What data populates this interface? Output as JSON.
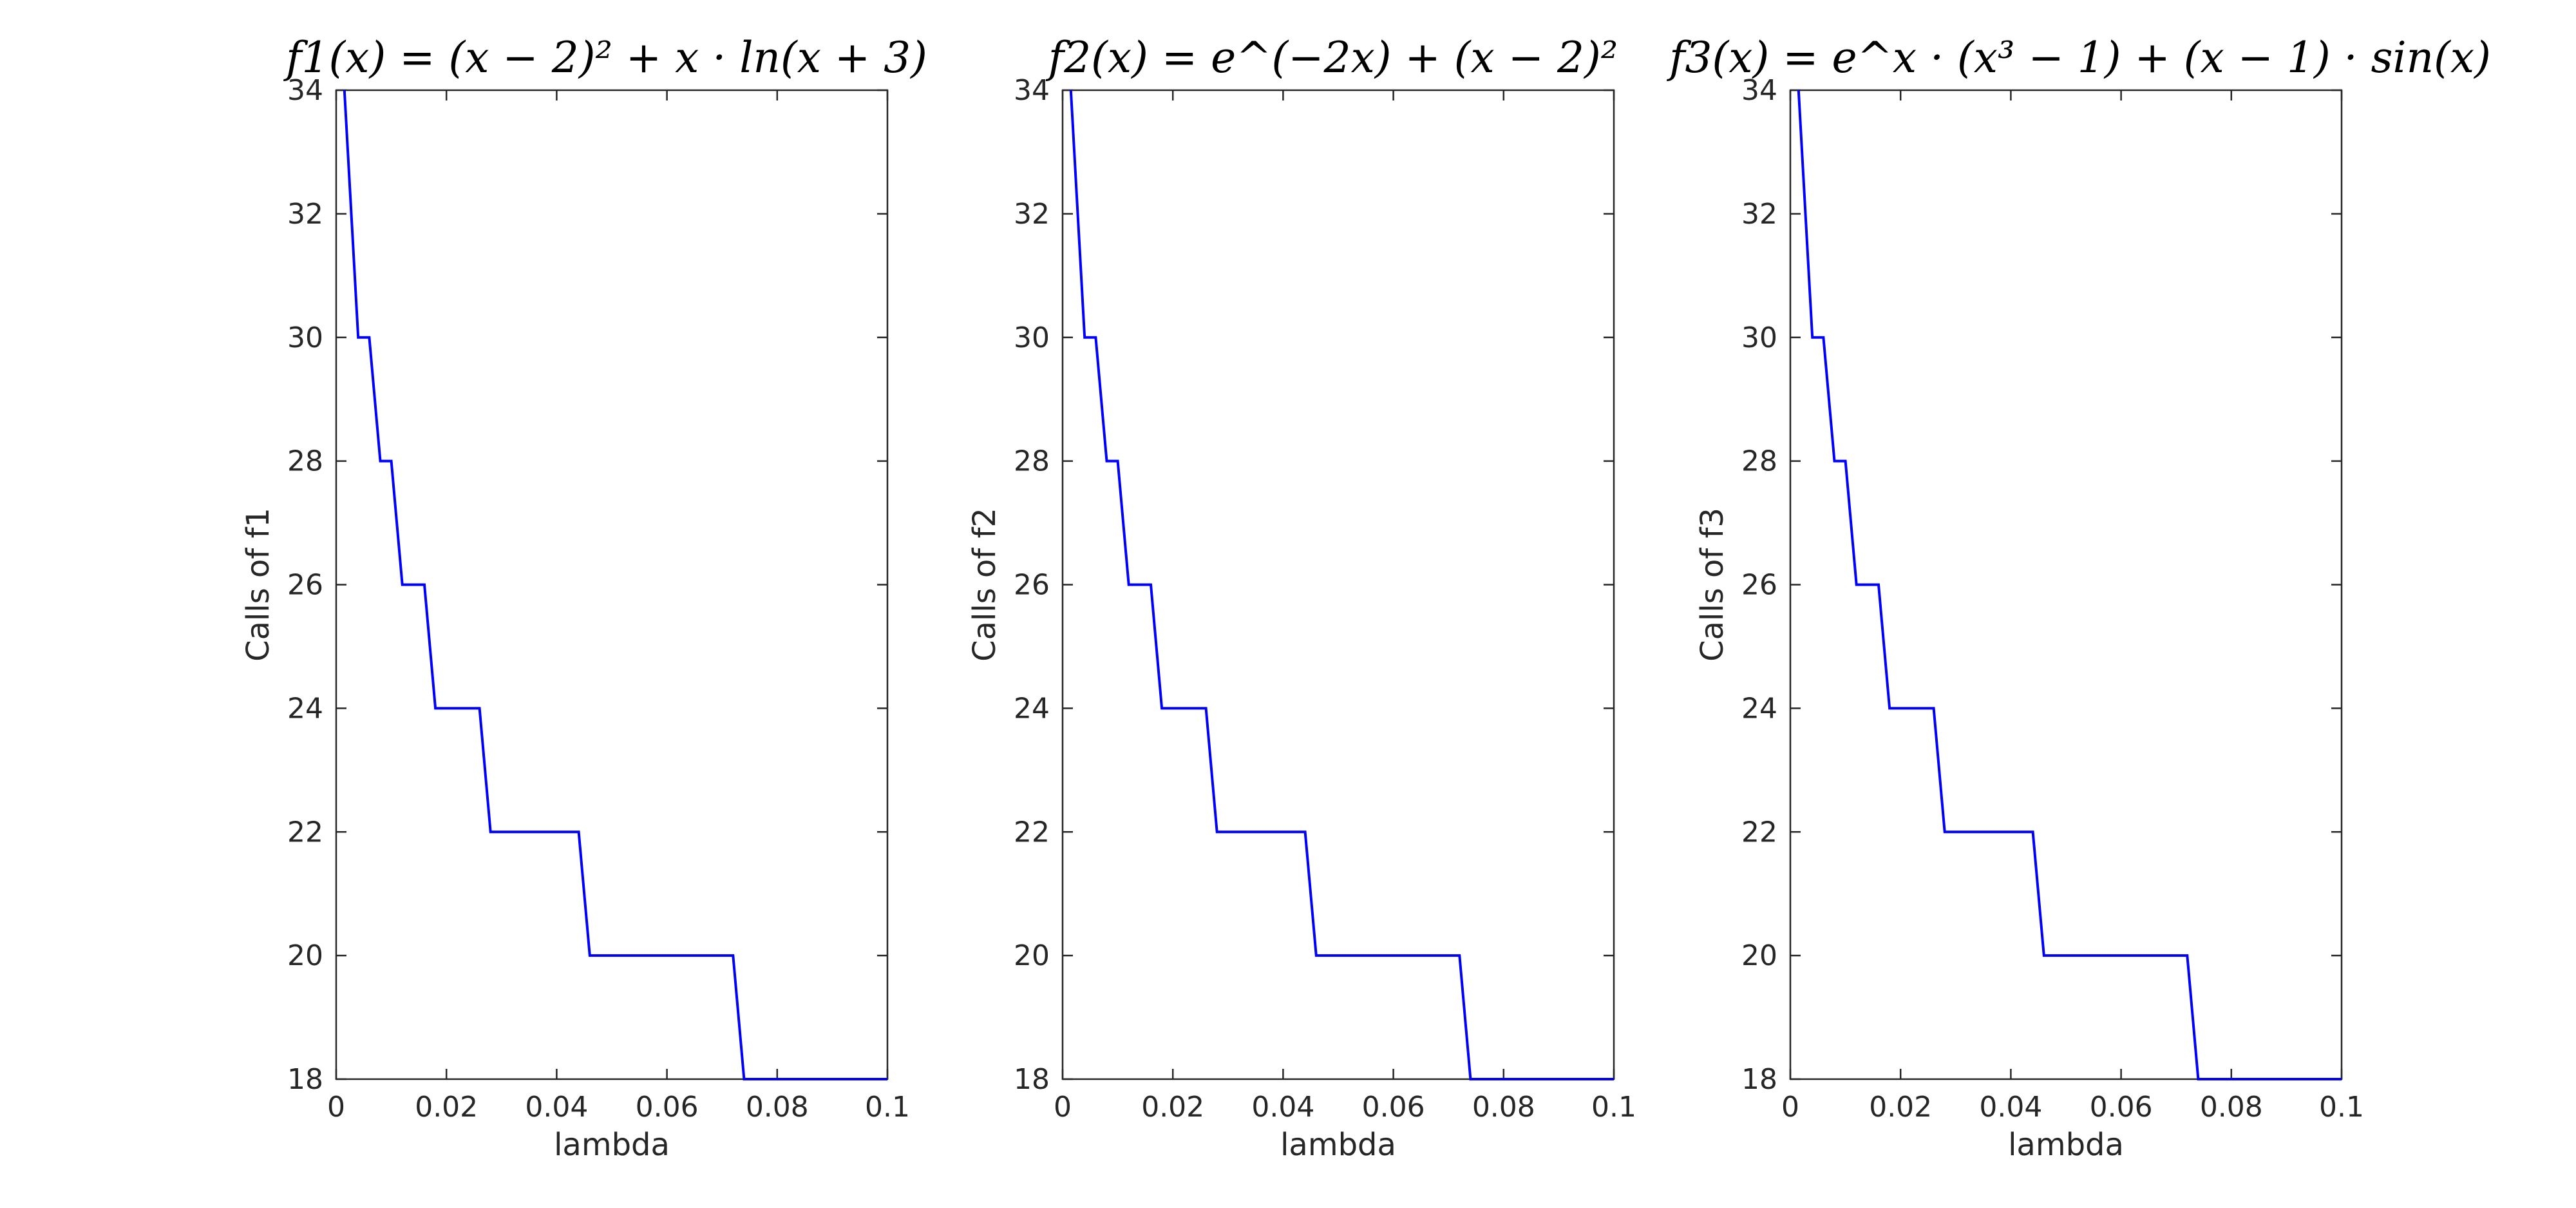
{
  "figure": {
    "background": "#ffffff",
    "line_color": "#0000ff",
    "axes_color": "#262626"
  },
  "chart_data": [
    {
      "type": "line",
      "title": "f1(x) = (x − 2)² + x · ln(x + 3)",
      "xlabel": "lambda",
      "ylabel": "Calls of f1",
      "xlim": [
        0,
        0.1
      ],
      "ylim": [
        18,
        34
      ],
      "xticks": [
        "0",
        "0.02",
        "0.04",
        "0.06",
        "0.08",
        "0.1"
      ],
      "yticks": [
        "18",
        "20",
        "22",
        "24",
        "26",
        "28",
        "30",
        "32",
        "34"
      ],
      "grid": false,
      "series": [
        {
          "color": "#0000ff",
          "x": [
            0.0015,
            0.004,
            0.006,
            0.008,
            0.01,
            0.012,
            0.016,
            0.018,
            0.026,
            0.028,
            0.044,
            0.046,
            0.072,
            0.074,
            0.1
          ],
          "y": [
            34,
            30,
            30,
            28,
            28,
            26,
            26,
            24,
            24,
            22,
            22,
            20,
            20,
            18,
            18
          ]
        }
      ]
    },
    {
      "type": "line",
      "title": "f2(x) = e^(−2x) + (x − 2)²",
      "xlabel": "lambda",
      "ylabel": "Calls of f2",
      "xlim": [
        0,
        0.1
      ],
      "ylim": [
        18,
        34
      ],
      "xticks": [
        "0",
        "0.02",
        "0.04",
        "0.06",
        "0.08",
        "0.1"
      ],
      "yticks": [
        "18",
        "20",
        "22",
        "24",
        "26",
        "28",
        "30",
        "32",
        "34"
      ],
      "grid": false,
      "series": [
        {
          "color": "#0000ff",
          "x": [
            0.0015,
            0.004,
            0.006,
            0.008,
            0.01,
            0.012,
            0.016,
            0.018,
            0.026,
            0.028,
            0.044,
            0.046,
            0.072,
            0.074,
            0.1
          ],
          "y": [
            34,
            30,
            30,
            28,
            28,
            26,
            26,
            24,
            24,
            22,
            22,
            20,
            20,
            18,
            18
          ]
        }
      ]
    },
    {
      "type": "line",
      "title": "f3(x) = e^x · (x³ − 1) + (x − 1) · sin(x)",
      "xlabel": "lambda",
      "ylabel": "Calls of f3",
      "xlim": [
        0,
        0.1
      ],
      "ylim": [
        18,
        34
      ],
      "xticks": [
        "0",
        "0.02",
        "0.04",
        "0.06",
        "0.08",
        "0.1"
      ],
      "yticks": [
        "18",
        "20",
        "22",
        "24",
        "26",
        "28",
        "30",
        "32",
        "34"
      ],
      "grid": false,
      "series": [
        {
          "color": "#0000ff",
          "x": [
            0.0015,
            0.004,
            0.006,
            0.008,
            0.01,
            0.012,
            0.016,
            0.018,
            0.026,
            0.028,
            0.044,
            0.046,
            0.072,
            0.074,
            0.1
          ],
          "y": [
            34,
            30,
            30,
            28,
            28,
            26,
            26,
            24,
            24,
            22,
            22,
            20,
            20,
            18,
            18
          ]
        }
      ]
    }
  ]
}
